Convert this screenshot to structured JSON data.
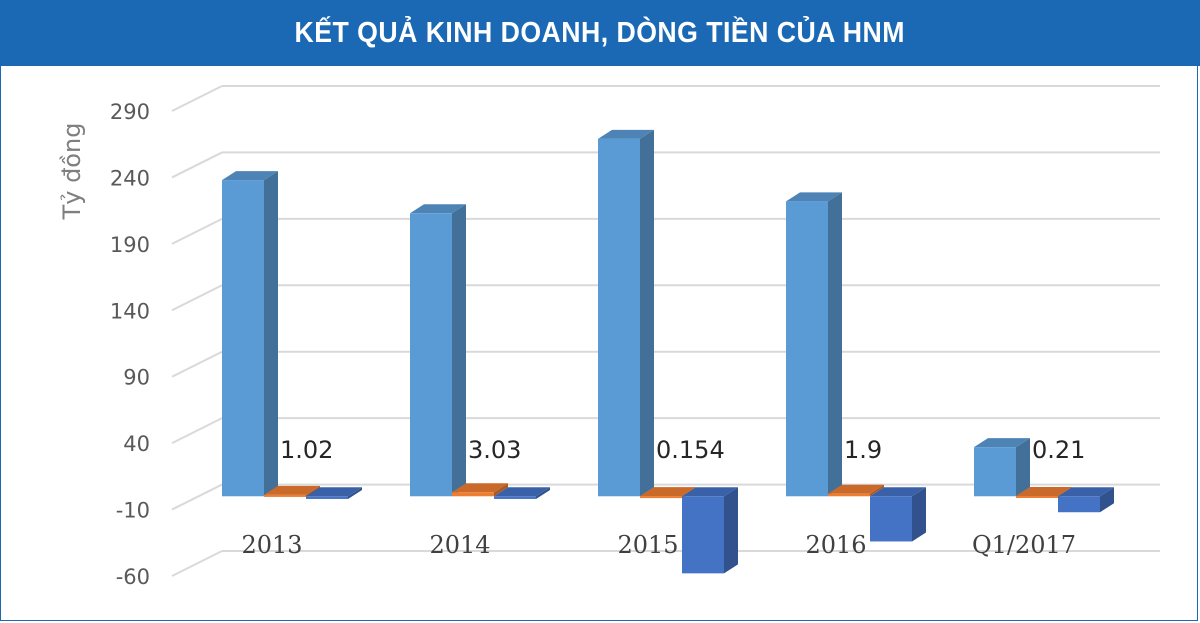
{
  "banner": {
    "title": "KẾT QUẢ KINH DOANH, DÒNG TIỀN CỦA HNM"
  },
  "chart_data": {
    "type": "bar",
    "title": "KẾT QUẢ KINH DOANH, DÒNG TIỀN CỦA HNM",
    "ylabel": "Tỷ đồng",
    "xlabel": "",
    "categories": [
      "2013",
      "2014",
      "2015",
      "2016",
      "Q1/2017"
    ],
    "yticks": [
      290,
      240,
      190,
      140,
      90,
      40,
      -10,
      -60
    ],
    "ylim": [
      -60,
      290
    ],
    "grid": true,
    "legend": "none",
    "three_d": true,
    "series": [
      {
        "values": [
          238,
          213,
          269,
          222,
          37
        ],
        "color": "#5b9bd5"
      },
      {
        "values": [
          1.02,
          3.03,
          0.154,
          1.9,
          0.21
        ],
        "color": "#ed7d31"
      },
      {
        "values": [
          -2,
          -2,
          -58,
          -34,
          -12
        ],
        "color": "#4472c4"
      }
    ],
    "data_labels": [
      "1.02",
      "3.03",
      "0.154",
      "1.9",
      "0.21"
    ]
  }
}
